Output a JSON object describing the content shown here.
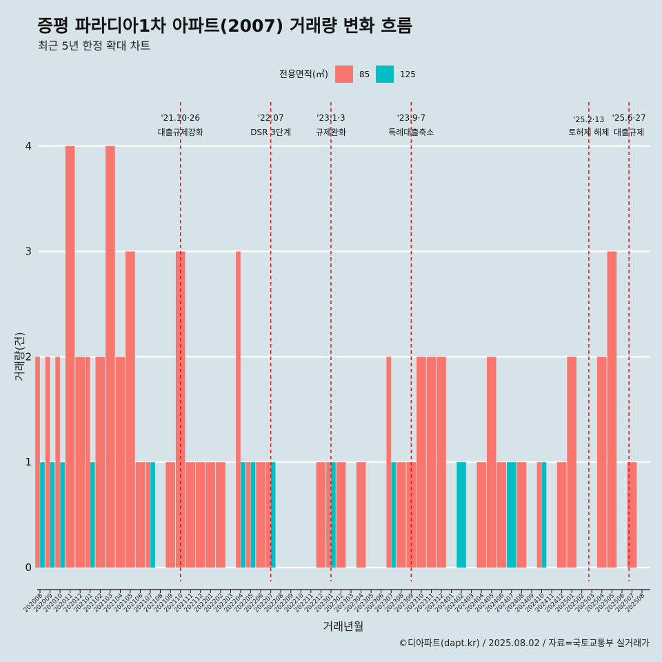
{
  "title": "증평 파라디아1차 아파트(2007) 거래량 변화 흐름",
  "subtitle": "최근 5년 한정 확대 차트",
  "caption": "©디아파트(dapt.kr) / 2025.08.02 / 자료=국토교통부 실거래가",
  "chart_data": {
    "type": "bar",
    "xlabel": "거래년월",
    "ylabel": "거래량(건)",
    "ylim": [
      0,
      4
    ],
    "yticks": [
      0,
      1,
      2,
      3,
      4
    ],
    "grid": true,
    "legend": {
      "title": "전용면적(㎡)",
      "position": "top"
    },
    "categories": [
      "202008",
      "202009",
      "202010",
      "202011",
      "202012",
      "202101",
      "202102",
      "202103",
      "202104",
      "202105",
      "202106",
      "202107",
      "202108",
      "202109",
      "202110",
      "202111",
      "202112",
      "202201",
      "202202",
      "202203",
      "202204",
      "202205",
      "202206",
      "202207",
      "202208",
      "202209",
      "202210",
      "202211",
      "202212",
      "202301",
      "202302",
      "202303",
      "202304",
      "202305",
      "202306",
      "202307",
      "202308",
      "202309",
      "202310",
      "202311",
      "202312",
      "202401",
      "202402",
      "202403",
      "202404",
      "202405",
      "202406",
      "202407",
      "202408",
      "202409",
      "202410",
      "202411",
      "202412",
      "202501",
      "202502",
      "202503",
      "202504",
      "202505",
      "202506",
      "202507",
      "202508"
    ],
    "series": [
      {
        "name": "85",
        "color": "#f8766d",
        "values": [
          2,
          2,
          2,
          4,
          2,
          2,
          2,
          4,
          2,
          3,
          1,
          1,
          0,
          1,
          3,
          1,
          1,
          1,
          1,
          0,
          3,
          1,
          1,
          1,
          0,
          0,
          0,
          0,
          1,
          1,
          1,
          0,
          1,
          0,
          0,
          2,
          1,
          1,
          2,
          2,
          2,
          0,
          0,
          0,
          1,
          2,
          1,
          0,
          1,
          0,
          1,
          0,
          1,
          2,
          0,
          0,
          2,
          3,
          0,
          1,
          0
        ]
      },
      {
        "name": "125",
        "color": "#00bfc4",
        "values": [
          1,
          1,
          1,
          0,
          0,
          1,
          0,
          0,
          0,
          0,
          0,
          1,
          0,
          0,
          0,
          0,
          0,
          0,
          0,
          0,
          1,
          1,
          0,
          1,
          0,
          0,
          0,
          0,
          0,
          1,
          0,
          0,
          0,
          0,
          0,
          1,
          0,
          0,
          0,
          0,
          0,
          0,
          1,
          0,
          0,
          0,
          0,
          1,
          0,
          0,
          1,
          0,
          0,
          0,
          0,
          0,
          0,
          0,
          0,
          0,
          0
        ]
      }
    ],
    "annotations": [
      {
        "at": 14,
        "date": "'21.10·26",
        "label": "대출규제강화"
      },
      {
        "at": 23,
        "date": "'22.07",
        "label": "DSR 3단계"
      },
      {
        "at": 29,
        "date": "'23.1·3",
        "label": "규제완화"
      },
      {
        "at": 37,
        "date": "'23.9·7",
        "label": "특례대출축소"
      },
      {
        "at": 54.7,
        "date": "'25.2·13",
        "label": "토허제 해제"
      },
      {
        "at": 58.7,
        "date": "'25.6·27",
        "label": "대출규제"
      }
    ]
  }
}
